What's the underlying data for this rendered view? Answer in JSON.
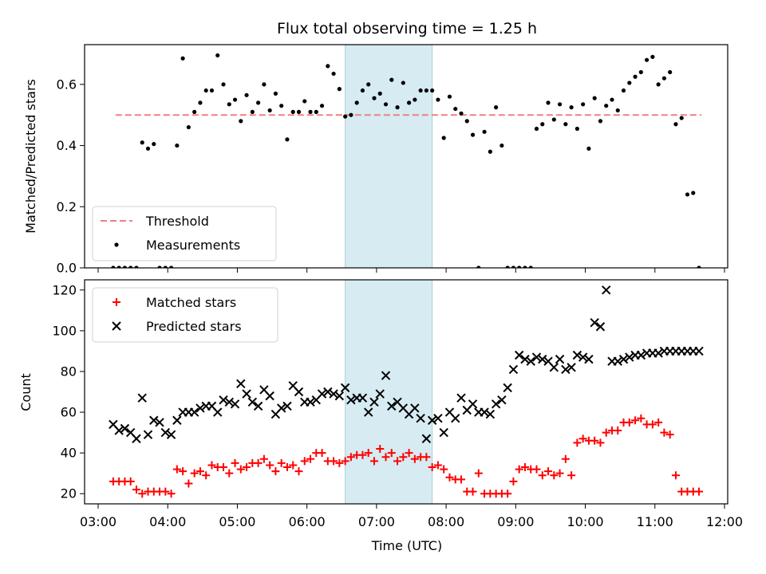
{
  "chart_data": [
    {
      "type": "scatter",
      "title": "Flux total observing time = 1.25 h",
      "xlabel": "",
      "ylabel": "Matched/Predicted stars",
      "xlim": [
        "03:00",
        "12:00"
      ],
      "ylim": [
        0,
        0.73
      ],
      "yticks": [
        "0.0",
        "0.2",
        "0.4",
        "0.6"
      ],
      "highlight_span": {
        "x0": "06:33",
        "x1": "07:48"
      },
      "legend": {
        "position": "lower-left",
        "entries": [
          "Threshold",
          "Measurements"
        ]
      },
      "series": [
        {
          "name": "Threshold",
          "kind": "line",
          "style": "dashed",
          "color": "#f08080",
          "x": [
            "03:15",
            "11:40"
          ],
          "y": [
            0.5,
            0.5
          ]
        },
        {
          "name": "Measurements",
          "kind": "scatter",
          "color": "#000000",
          "x": [
            "03:13",
            "03:18",
            "03:23",
            "03:28",
            "03:33",
            "03:38",
            "03:43",
            "03:48",
            "03:53",
            "03:58",
            "04:03",
            "04:08",
            "04:13",
            "04:18",
            "04:23",
            "04:28",
            "04:33",
            "04:38",
            "04:43",
            "04:48",
            "04:53",
            "04:58",
            "05:03",
            "05:08",
            "05:13",
            "05:18",
            "05:23",
            "05:28",
            "05:33",
            "05:38",
            "05:43",
            "05:48",
            "05:53",
            "05:58",
            "06:03",
            "06:08",
            "06:13",
            "06:18",
            "06:23",
            "06:28",
            "06:33",
            "06:38",
            "06:43",
            "06:48",
            "06:53",
            "06:58",
            "07:03",
            "07:08",
            "07:13",
            "07:18",
            "07:23",
            "07:28",
            "07:33",
            "07:38",
            "07:43",
            "07:48",
            "07:53",
            "07:58",
            "08:03",
            "08:08",
            "08:13",
            "08:18",
            "08:23",
            "08:28",
            "08:33",
            "08:38",
            "08:43",
            "08:48",
            "08:53",
            "08:58",
            "09:03",
            "09:08",
            "09:13",
            "09:18",
            "09:23",
            "09:28",
            "09:33",
            "09:38",
            "09:43",
            "09:48",
            "09:53",
            "09:58",
            "10:03",
            "10:08",
            "10:13",
            "10:18",
            "10:23",
            "10:28",
            "10:33",
            "10:38",
            "10:43",
            "10:48",
            "10:53",
            "10:58",
            "11:03",
            "11:08",
            "11:13",
            "11:18",
            "11:23",
            "11:28",
            "11:33",
            "11:38"
          ],
          "y": [
            0,
            0,
            0,
            0,
            0,
            0.41,
            0.39,
            0.405,
            0,
            0,
            0,
            0.4,
            0.685,
            0.46,
            0.51,
            0.54,
            0.58,
            0.58,
            0.695,
            0.6,
            0.535,
            0.55,
            0.48,
            0.565,
            0.51,
            0.54,
            0.6,
            0.515,
            0.57,
            0.53,
            0.42,
            0.51,
            0.51,
            0.545,
            0.51,
            0.51,
            0.53,
            0.66,
            0.635,
            0.585,
            0.495,
            0.5,
            0.54,
            0.58,
            0.6,
            0.555,
            0.57,
            0.535,
            0.615,
            0.525,
            0.605,
            0.54,
            0.55,
            0.58,
            0.58,
            0.58,
            0.55,
            0.425,
            0.56,
            0.52,
            0.505,
            0.48,
            0.435,
            0,
            0.445,
            0.38,
            0.525,
            0.4,
            0,
            0,
            0,
            0,
            0,
            0.455,
            0.47,
            0.54,
            0.485,
            0.535,
            0.47,
            0.525,
            0.455,
            0.535,
            0.39,
            0.555,
            0.48,
            0.53,
            0.55,
            0.515,
            0.58,
            0.605,
            0.625,
            0.64,
            0.68,
            0.69,
            0.6,
            0.62,
            0.64,
            0.47,
            0.49,
            0.24,
            0.245,
            0
          ]
        }
      ]
    },
    {
      "type": "scatter",
      "title": "",
      "xlabel": "Time (UTC)",
      "ylabel": "Count",
      "xlim": [
        "03:00",
        "12:00"
      ],
      "xticks": [
        "03:00",
        "04:00",
        "05:00",
        "06:00",
        "07:00",
        "08:00",
        "09:00",
        "10:00",
        "11:00",
        "12:00"
      ],
      "ylim": [
        15,
        125
      ],
      "yticks": [
        "20",
        "40",
        "60",
        "80",
        "100",
        "120"
      ],
      "highlight_span": {
        "x0": "06:33",
        "x1": "07:48"
      },
      "legend": {
        "position": "upper-left",
        "entries": [
          "Matched stars",
          "Predicted stars"
        ]
      },
      "series": [
        {
          "name": "Matched stars",
          "kind": "scatter",
          "marker": "+",
          "color": "#ff0000",
          "x": [
            "03:13",
            "03:18",
            "03:23",
            "03:28",
            "03:33",
            "03:38",
            "03:43",
            "03:48",
            "03:53",
            "03:58",
            "04:03",
            "04:08",
            "04:13",
            "04:18",
            "04:23",
            "04:28",
            "04:33",
            "04:38",
            "04:43",
            "04:48",
            "04:53",
            "04:58",
            "05:03",
            "05:08",
            "05:13",
            "05:18",
            "05:23",
            "05:28",
            "05:33",
            "05:38",
            "05:43",
            "05:48",
            "05:53",
            "05:58",
            "06:03",
            "06:08",
            "06:13",
            "06:18",
            "06:23",
            "06:28",
            "06:33",
            "06:38",
            "06:43",
            "06:48",
            "06:53",
            "06:58",
            "07:03",
            "07:08",
            "07:13",
            "07:18",
            "07:23",
            "07:28",
            "07:33",
            "07:38",
            "07:43",
            "07:48",
            "07:53",
            "07:58",
            "08:03",
            "08:08",
            "08:13",
            "08:18",
            "08:23",
            "08:28",
            "08:33",
            "08:38",
            "08:43",
            "08:48",
            "08:53",
            "08:58",
            "09:03",
            "09:08",
            "09:13",
            "09:18",
            "09:23",
            "09:28",
            "09:33",
            "09:38",
            "09:43",
            "09:48",
            "09:53",
            "09:58",
            "10:03",
            "10:08",
            "10:13",
            "10:18",
            "10:23",
            "10:28",
            "10:33",
            "10:38",
            "10:43",
            "10:48",
            "10:53",
            "10:58",
            "11:03",
            "11:08",
            "11:13",
            "11:18",
            "11:23",
            "11:28",
            "11:33",
            "11:38"
          ],
          "y": [
            26,
            26,
            26,
            26,
            22,
            20,
            21,
            21,
            21,
            21,
            20,
            32,
            31,
            25,
            30,
            31,
            29,
            34,
            33,
            33,
            30,
            35,
            32,
            33,
            35,
            35,
            37,
            34,
            31,
            35,
            33,
            34,
            31,
            36,
            37,
            40,
            40,
            36,
            36,
            35,
            36,
            38,
            39,
            39,
            40,
            36,
            42,
            38,
            40,
            36,
            38,
            40,
            37,
            38,
            38,
            33,
            34,
            32,
            28,
            27,
            27,
            21,
            21,
            30,
            20,
            20,
            20,
            20,
            20,
            26,
            32,
            33,
            32,
            32,
            29,
            31,
            29,
            30,
            37,
            29,
            45,
            47,
            46,
            46,
            45,
            50,
            51,
            51,
            55,
            55,
            56,
            57,
            54,
            54,
            55,
            50,
            49,
            29,
            21,
            21,
            21,
            21
          ]
        },
        {
          "name": "Predicted stars",
          "kind": "scatter",
          "marker": "x",
          "color": "#000000",
          "x": [
            "03:13",
            "03:18",
            "03:23",
            "03:28",
            "03:33",
            "03:38",
            "03:43",
            "03:48",
            "03:53",
            "03:58",
            "04:03",
            "04:08",
            "04:13",
            "04:18",
            "04:23",
            "04:28",
            "04:33",
            "04:38",
            "04:43",
            "04:48",
            "04:53",
            "04:58",
            "05:03",
            "05:08",
            "05:13",
            "05:18",
            "05:23",
            "05:28",
            "05:33",
            "05:38",
            "05:43",
            "05:48",
            "05:53",
            "05:58",
            "06:03",
            "06:08",
            "06:13",
            "06:18",
            "06:23",
            "06:28",
            "06:33",
            "06:38",
            "06:43",
            "06:48",
            "06:53",
            "06:58",
            "07:03",
            "07:08",
            "07:13",
            "07:18",
            "07:23",
            "07:28",
            "07:33",
            "07:38",
            "07:43",
            "07:48",
            "07:53",
            "07:58",
            "08:03",
            "08:08",
            "08:13",
            "08:18",
            "08:23",
            "08:28",
            "08:33",
            "08:38",
            "08:43",
            "08:48",
            "08:53",
            "08:58",
            "09:03",
            "09:08",
            "09:13",
            "09:18",
            "09:23",
            "09:28",
            "09:33",
            "09:38",
            "09:43",
            "09:48",
            "09:53",
            "09:58",
            "10:03",
            "10:08",
            "10:13",
            "10:18",
            "10:23",
            "10:28",
            "10:33",
            "10:38",
            "10:43",
            "10:48",
            "10:53",
            "10:58",
            "11:03",
            "11:08",
            "11:13",
            "11:18",
            "11:23",
            "11:28",
            "11:33",
            "11:38"
          ],
          "y": [
            54,
            51,
            52,
            50,
            47,
            67,
            49,
            56,
            55,
            50,
            49,
            56,
            60,
            60,
            60,
            62,
            63,
            63,
            60,
            66,
            65,
            64,
            74,
            69,
            65,
            63,
            71,
            68,
            59,
            62,
            63,
            73,
            70,
            65,
            65,
            66,
            69,
            70,
            69,
            68,
            72,
            66,
            67,
            67,
            60,
            65,
            69,
            78,
            63,
            65,
            62,
            59,
            62,
            57,
            47,
            56,
            57,
            50,
            60,
            57,
            67,
            61,
            64,
            60,
            60,
            59,
            64,
            66,
            72,
            81,
            88,
            86,
            85,
            87,
            86,
            85,
            82,
            86,
            81,
            82,
            88,
            87,
            86,
            104,
            102,
            120,
            85,
            85,
            86,
            87,
            88,
            88,
            89,
            89,
            89,
            90,
            90,
            90,
            90,
            90,
            90,
            90
          ]
        }
      ]
    }
  ]
}
